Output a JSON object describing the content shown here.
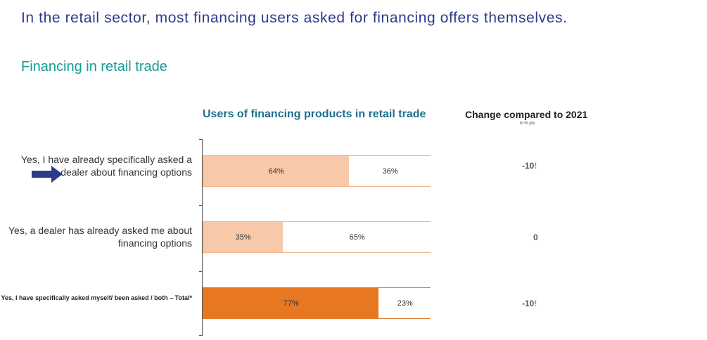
{
  "headline": "In the retail sector, most financing users asked for financing offers themselves.",
  "subtitle": "Financing in retail trade",
  "chart_data": {
    "type": "bar",
    "orientation": "horizontal-stacked-100",
    "title": "Users of financing products in retail trade",
    "categories": [
      "Yes, I have already specifically asked a dealer about financing options",
      "Yes, a dealer has already asked me about financing options",
      "Yes, I have specifically asked myself/ been asked / both – Total*"
    ],
    "series": [
      {
        "values": [
          64,
          35,
          77
        ]
      },
      {
        "values": [
          36,
          65,
          23
        ]
      }
    ],
    "value_labels": [
      [
        "64%",
        "36%"
      ],
      [
        "35%",
        "65%"
      ],
      [
        "77%",
        "23%"
      ]
    ],
    "fills": [
      [
        "#f7c9a8",
        "#ffffff"
      ],
      [
        "#f7c9a8",
        "#ffffff"
      ],
      [
        "#e87722",
        "#ffffff"
      ]
    ],
    "change": {
      "title": "Change compared to 2021",
      "unit": "in % pts",
      "values": [
        "-10",
        "0",
        "-10"
      ],
      "flags": [
        "!",
        "",
        "!"
      ]
    },
    "highlight_arrow_row": 0,
    "xlim": [
      0,
      100
    ]
  }
}
